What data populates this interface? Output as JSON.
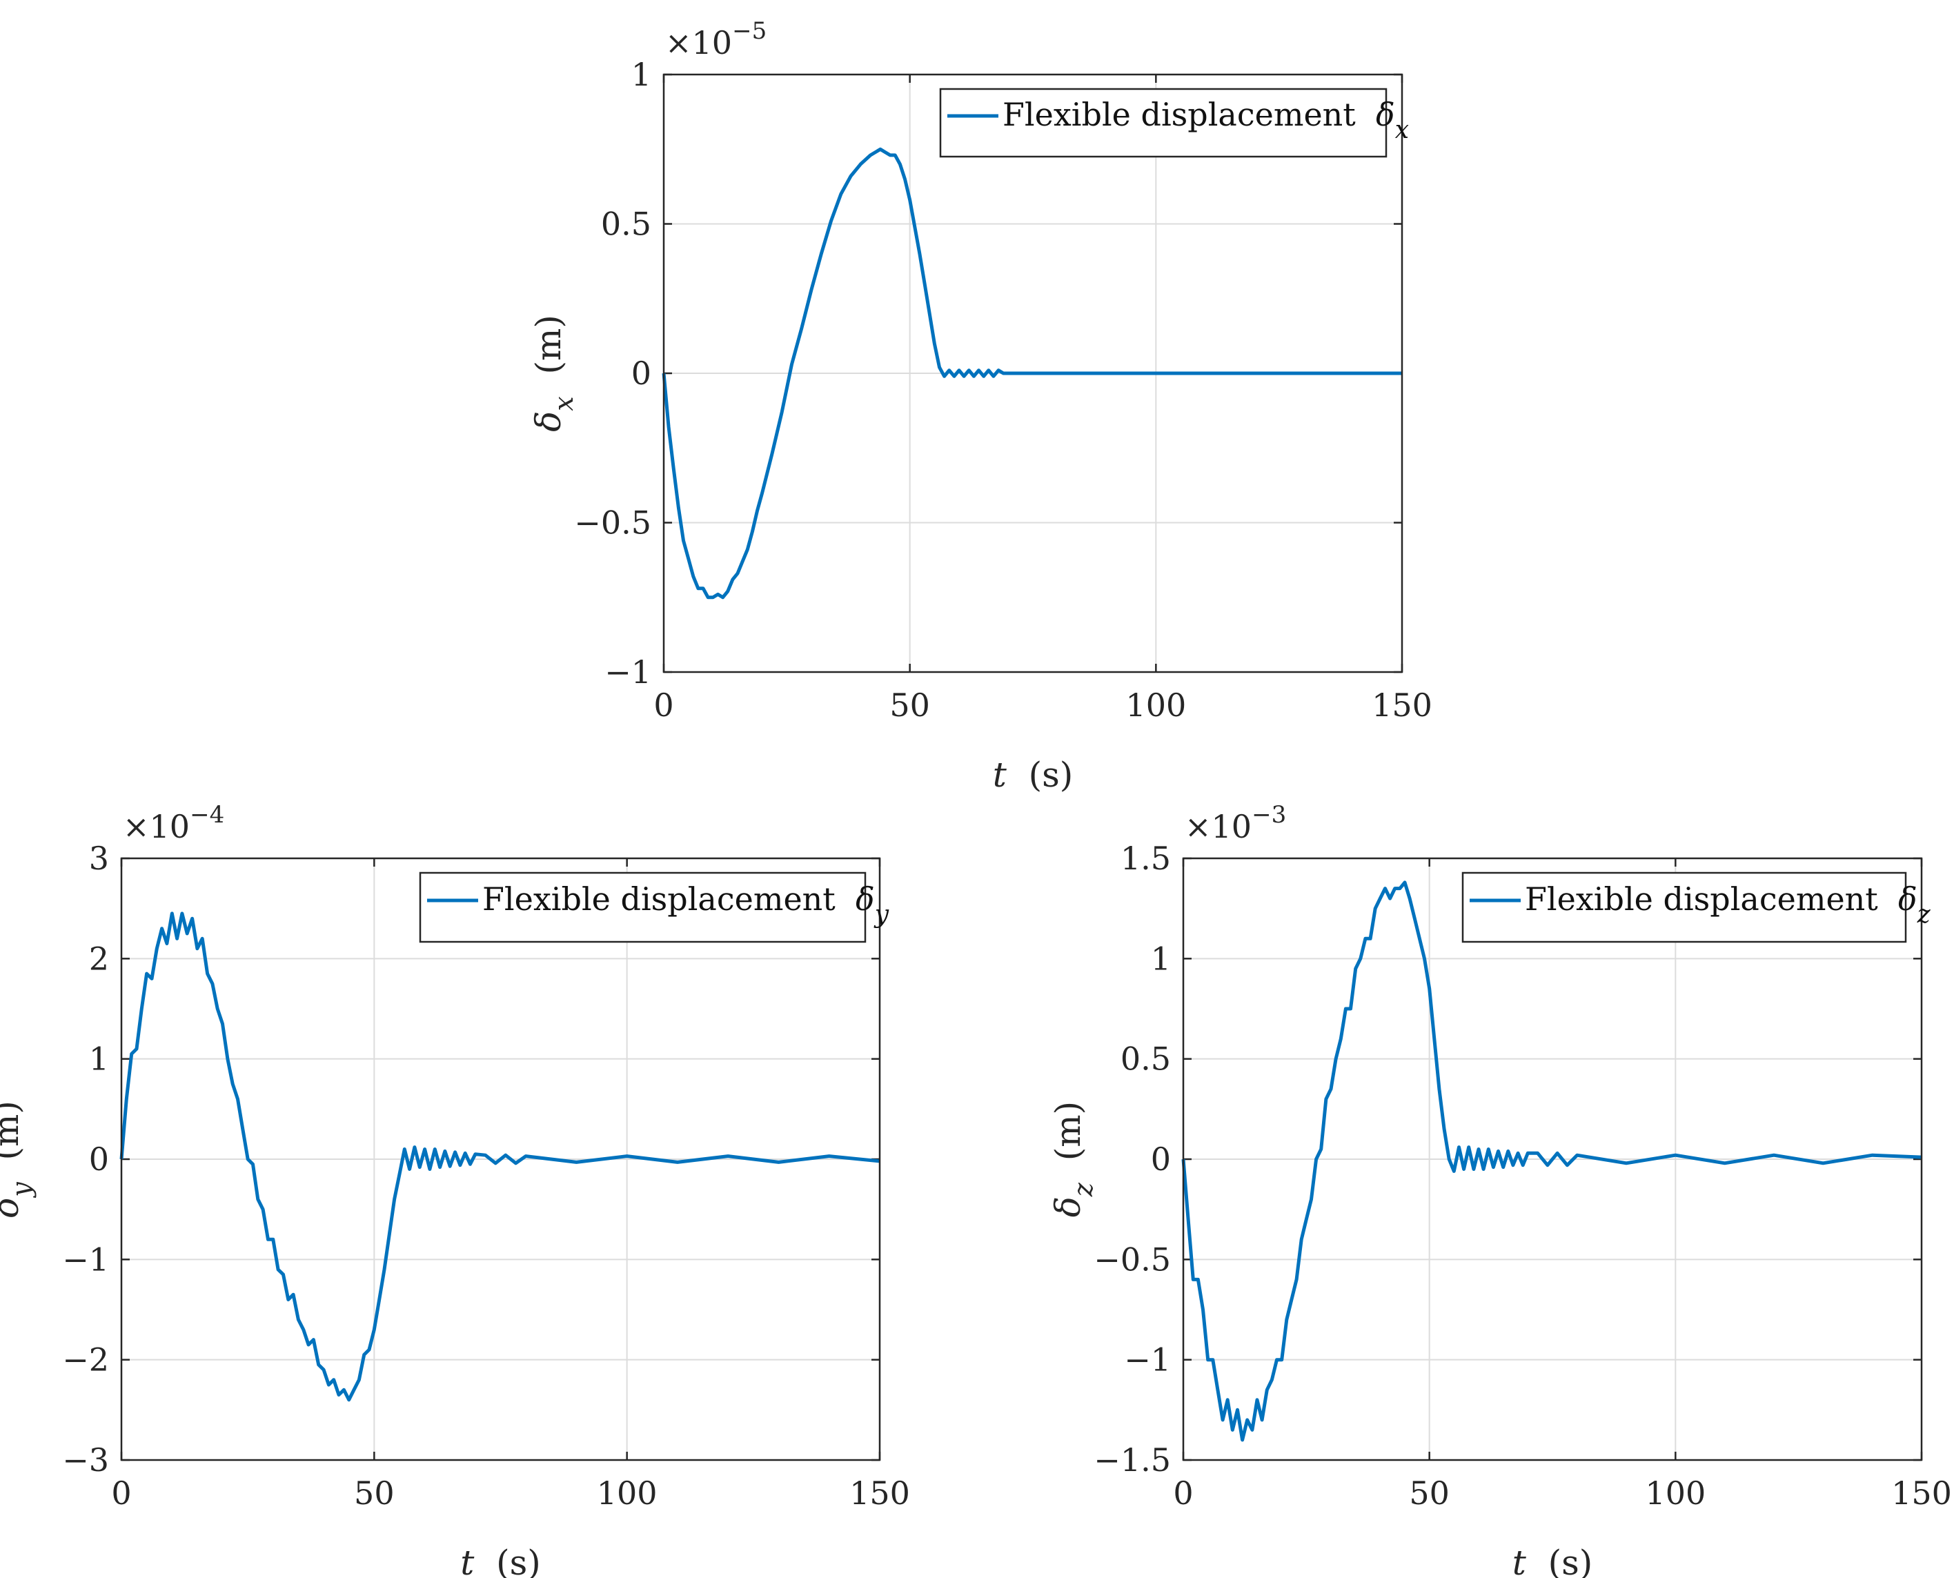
{
  "chart_data": [
    {
      "id": "dx",
      "type": "line",
      "xlabel_var": "t",
      "xlabel_unit": "(s)",
      "ylabel_sym": "δ",
      "ylabel_sub": "x",
      "ylabel_unit": "(m)",
      "exponent_base": "×10",
      "exponent_power": "−5",
      "xlim": [
        0,
        150
      ],
      "ylim": [
        -1,
        1
      ],
      "xticks": [
        0,
        50,
        100,
        150
      ],
      "xtick_labels": [
        "0",
        "50",
        "100",
        "150"
      ],
      "yticks": [
        -1,
        -0.5,
        0,
        0.5,
        1
      ],
      "ytick_labels": [
        "−1",
        "−0.5",
        "0",
        "0.5",
        "1"
      ],
      "grid": true,
      "legend_position": "top-right",
      "series": [
        {
          "name": "Flexible displacement",
          "name_sym": "δ",
          "name_sub": "x",
          "color": "#0072BD",
          "x": [
            0,
            1,
            2,
            3,
            4,
            5,
            6,
            7,
            8,
            9,
            10,
            11,
            12,
            13,
            14,
            15,
            16,
            17,
            18,
            19,
            20,
            22,
            24,
            26,
            28,
            30,
            32,
            34,
            36,
            38,
            40,
            42,
            44,
            45,
            46,
            47,
            48,
            49,
            50,
            51,
            52,
            53,
            54,
            55,
            56,
            57,
            58,
            59,
            60,
            61,
            62,
            63,
            64,
            65,
            66,
            67,
            68,
            69,
            70,
            72,
            74,
            76,
            78,
            80,
            85,
            90,
            95,
            100,
            110,
            120,
            130,
            140,
            150
          ],
          "y": [
            0,
            -0.18,
            -0.32,
            -0.45,
            -0.56,
            -0.62,
            -0.68,
            -0.72,
            -0.72,
            -0.75,
            -0.75,
            -0.74,
            -0.75,
            -0.73,
            -0.69,
            -0.67,
            -0.63,
            -0.59,
            -0.53,
            -0.46,
            -0.4,
            -0.27,
            -0.13,
            0.03,
            0.15,
            0.28,
            0.4,
            0.51,
            0.6,
            0.66,
            0.7,
            0.73,
            0.75,
            0.74,
            0.73,
            0.73,
            0.7,
            0.65,
            0.58,
            0.49,
            0.4,
            0.3,
            0.2,
            0.1,
            0.02,
            -0.01,
            0.01,
            -0.01,
            0.01,
            -0.01,
            0.01,
            -0.01,
            0.01,
            -0.01,
            0.01,
            -0.01,
            0.01,
            0,
            0,
            0,
            0,
            0,
            0,
            0,
            0,
            0,
            0,
            0,
            0,
            0,
            0,
            0,
            0
          ]
        }
      ]
    },
    {
      "id": "dy",
      "type": "line",
      "xlabel_var": "t",
      "xlabel_unit": "(s)",
      "ylabel_sym": "δ",
      "ylabel_sub": "y",
      "ylabel_unit": "(m)",
      "exponent_base": "×10",
      "exponent_power": "−4",
      "xlim": [
        0,
        150
      ],
      "ylim": [
        -3,
        3
      ],
      "xticks": [
        0,
        50,
        100,
        150
      ],
      "xtick_labels": [
        "0",
        "50",
        "100",
        "150"
      ],
      "yticks": [
        -3,
        -2,
        -1,
        0,
        1,
        2,
        3
      ],
      "ytick_labels": [
        "−3",
        "−2",
        "−1",
        "0",
        "1",
        "2",
        "3"
      ],
      "grid": true,
      "legend_position": "top-right",
      "series": [
        {
          "name": "Flexible displacement",
          "name_sym": "δ",
          "name_sub": "y",
          "color": "#0072BD",
          "x": [
            0,
            1,
            2,
            3,
            4,
            5,
            6,
            7,
            8,
            9,
            10,
            11,
            12,
            13,
            14,
            15,
            16,
            17,
            18,
            19,
            20,
            21,
            22,
            23,
            24,
            25,
            26,
            27,
            28,
            29,
            30,
            31,
            32,
            33,
            34,
            35,
            36,
            37,
            38,
            39,
            40,
            41,
            42,
            43,
            44,
            45,
            46,
            47,
            48,
            49,
            50,
            51,
            52,
            53,
            54,
            55,
            56,
            57,
            58,
            59,
            60,
            61,
            62,
            63,
            64,
            65,
            66,
            67,
            68,
            69,
            70,
            72,
            74,
            76,
            78,
            80,
            90,
            100,
            110,
            120,
            130,
            140,
            150
          ],
          "y": [
            0,
            0.6,
            1.05,
            1.1,
            1.5,
            1.85,
            1.8,
            2.1,
            2.3,
            2.15,
            2.45,
            2.2,
            2.45,
            2.25,
            2.4,
            2.1,
            2.2,
            1.85,
            1.75,
            1.5,
            1.35,
            1.0,
            0.75,
            0.6,
            0.3,
            0.0,
            -0.05,
            -0.4,
            -0.5,
            -0.8,
            -0.8,
            -1.1,
            -1.15,
            -1.4,
            -1.35,
            -1.6,
            -1.7,
            -1.85,
            -1.8,
            -2.05,
            -2.1,
            -2.25,
            -2.2,
            -2.35,
            -2.3,
            -2.4,
            -2.3,
            -2.2,
            -1.95,
            -1.9,
            -1.7,
            -1.4,
            -1.1,
            -0.75,
            -0.4,
            -0.15,
            0.1,
            -0.1,
            0.12,
            -0.08,
            0.1,
            -0.1,
            0.1,
            -0.08,
            0.08,
            -0.07,
            0.07,
            -0.06,
            0.06,
            -0.05,
            0.05,
            0.04,
            -0.04,
            0.04,
            -0.04,
            0.03,
            -0.03,
            0.03,
            -0.03,
            0.03,
            -0.03,
            0.03,
            -0.02
          ]
        }
      ]
    },
    {
      "id": "dz",
      "type": "line",
      "xlabel_var": "t",
      "xlabel_unit": "(s)",
      "ylabel_sym": "δ",
      "ylabel_sub": "z",
      "ylabel_unit": "(m)",
      "exponent_base": "×10",
      "exponent_power": "−3",
      "xlim": [
        0,
        150
      ],
      "ylim": [
        -1.5,
        1.5
      ],
      "xticks": [
        0,
        50,
        100,
        150
      ],
      "xtick_labels": [
        "0",
        "50",
        "100",
        "150"
      ],
      "yticks": [
        -1.5,
        -1,
        -0.5,
        0,
        0.5,
        1,
        1.5
      ],
      "ytick_labels": [
        "−1.5",
        "−1",
        "−0.5",
        "0",
        "0.5",
        "1",
        "1.5"
      ],
      "grid": true,
      "legend_position": "top-right",
      "series": [
        {
          "name": "Flexible displacement",
          "name_sym": "δ",
          "name_sub": "z",
          "color": "#0072BD",
          "x": [
            0,
            1,
            2,
            3,
            4,
            5,
            6,
            7,
            8,
            9,
            10,
            11,
            12,
            13,
            14,
            15,
            16,
            17,
            18,
            19,
            20,
            21,
            22,
            23,
            24,
            25,
            26,
            27,
            28,
            29,
            30,
            31,
            32,
            33,
            34,
            35,
            36,
            37,
            38,
            39,
            40,
            41,
            42,
            43,
            44,
            45,
            46,
            47,
            48,
            49,
            50,
            51,
            52,
            53,
            54,
            55,
            56,
            57,
            58,
            59,
            60,
            61,
            62,
            63,
            64,
            65,
            66,
            67,
            68,
            69,
            70,
            72,
            74,
            76,
            78,
            80,
            90,
            100,
            110,
            120,
            130,
            140,
            150
          ],
          "y": [
            0,
            -0.3,
            -0.6,
            -0.6,
            -0.75,
            -1.0,
            -1.0,
            -1.15,
            -1.3,
            -1.2,
            -1.35,
            -1.25,
            -1.4,
            -1.3,
            -1.35,
            -1.2,
            -1.3,
            -1.15,
            -1.1,
            -1.0,
            -1.0,
            -0.8,
            -0.7,
            -0.6,
            -0.4,
            -0.3,
            -0.2,
            0.0,
            0.05,
            0.3,
            0.35,
            0.5,
            0.6,
            0.75,
            0.75,
            0.95,
            1.0,
            1.1,
            1.1,
            1.25,
            1.3,
            1.35,
            1.3,
            1.35,
            1.35,
            1.38,
            1.3,
            1.2,
            1.1,
            1.0,
            0.85,
            0.6,
            0.35,
            0.15,
            0.0,
            -0.06,
            0.06,
            -0.05,
            0.06,
            -0.05,
            0.05,
            -0.05,
            0.05,
            -0.04,
            0.04,
            -0.04,
            0.04,
            -0.03,
            0.03,
            -0.03,
            0.03,
            0.03,
            -0.03,
            0.03,
            -0.03,
            0.02,
            -0.02,
            0.02,
            -0.02,
            0.02,
            -0.02,
            0.02,
            0.01
          ]
        }
      ]
    }
  ]
}
